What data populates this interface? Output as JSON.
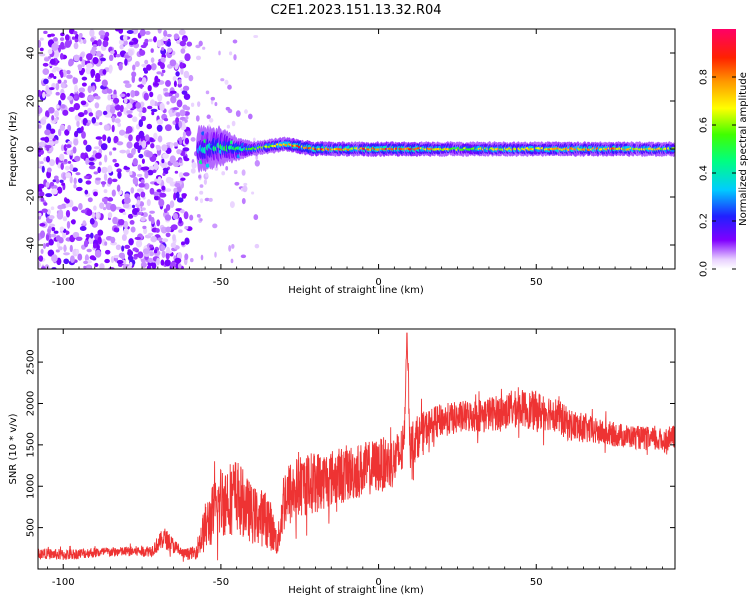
{
  "title": "C2E1.2023.151.13.32.R04",
  "spectrogram": {
    "xlabel": "Height of straight line (km)",
    "ylabel": "Frequency (Hz)",
    "xlim": [
      -108,
      94
    ],
    "ylim": [
      -50,
      50
    ],
    "x_ticks": [
      -100,
      -50,
      0,
      50
    ],
    "y_ticks": [
      -40,
      -20,
      0,
      20,
      40
    ],
    "colorbar": {
      "label": "Normalized spectral amplitude",
      "range": [
        0,
        1
      ],
      "ticks": [
        "0.0",
        "0.2",
        "0.4",
        "0.6",
        "0.8"
      ],
      "tick_values": [
        0.0,
        0.2,
        0.4,
        0.6,
        0.8
      ]
    }
  },
  "snr": {
    "xlabel": "Height of straight line (km)",
    "ylabel": "SNR (10 * v/v)",
    "xlim": [
      -108,
      94
    ],
    "ylim": [
      0,
      2900
    ],
    "x_ticks": [
      -100,
      -50,
      0,
      50
    ],
    "y_ticks": [
      500,
      1000,
      1500,
      2000,
      2500
    ],
    "line_color": "#ee3333"
  },
  "chart_data": [
    {
      "type": "heatmap",
      "title": "C2E1.2023.151.13.32.R04",
      "xlabel": "Height of straight line (km)",
      "ylabel": "Frequency (Hz)",
      "xlim": [
        -108,
        94
      ],
      "ylim": [
        -50,
        50
      ],
      "colorscale": "rainbow (violet=0 to red/magenta=1)",
      "noise_region": {
        "x": [
          -108,
          -60
        ],
        "freq": [
          -50,
          50
        ],
        "amplitude": 0.1
      },
      "gap_region": {
        "x": [
          -60,
          -38
        ],
        "freq": [
          -50,
          50
        ],
        "amplitude": 0.05
      },
      "ridge": {
        "x": [
          -57,
          -50,
          -45,
          -40,
          -35,
          -30,
          -25,
          -20,
          -10,
          0,
          10,
          25,
          50,
          75,
          94
        ],
        "freq": [
          0,
          1,
          0,
          0,
          1,
          2,
          1,
          0,
          0,
          0,
          0,
          0,
          0,
          0,
          0
        ],
        "halfwidth": [
          10,
          8,
          5,
          3,
          3,
          3,
          3,
          3,
          3,
          3,
          3,
          3,
          3,
          3,
          3
        ],
        "peak_amplitude": [
          0.35,
          0.45,
          0.5,
          0.55,
          0.6,
          0.7,
          0.8,
          0.85,
          0.7,
          0.85,
          0.8,
          0.6,
          0.7,
          0.75,
          0.6
        ]
      }
    },
    {
      "type": "line",
      "xlabel": "Height of straight line (km)",
      "ylabel": "SNR (10 * v/v)",
      "xlim": [
        -108,
        94
      ],
      "ylim": [
        0,
        2900
      ],
      "x": [
        -108,
        -100,
        -90,
        -80,
        -72,
        -68,
        -62,
        -58,
        -55,
        -50,
        -45,
        -40,
        -35,
        -32,
        -30,
        -25,
        -20,
        -15,
        -10,
        -5,
        0,
        5,
        8,
        9,
        10,
        15,
        20,
        30,
        40,
        45,
        50,
        55,
        60,
        70,
        80,
        90,
        94
      ],
      "value": [
        190,
        170,
        200,
        210,
        220,
        380,
        180,
        200,
        500,
        820,
        900,
        650,
        600,
        300,
        850,
        1000,
        1050,
        1100,
        1150,
        1200,
        1250,
        1300,
        1450,
        2850,
        1500,
        1700,
        1800,
        1850,
        1900,
        1950,
        1900,
        1900,
        1750,
        1650,
        1600,
        1550,
        1600
      ],
      "jitter": [
        60,
        70,
        60,
        60,
        70,
        130,
        60,
        80,
        300,
        450,
        450,
        350,
        350,
        150,
        420,
        380,
        380,
        350,
        350,
        330,
        330,
        320,
        300,
        0,
        300,
        220,
        200,
        200,
        220,
        220,
        250,
        220,
        200,
        160,
        140,
        150,
        140
      ]
    }
  ]
}
